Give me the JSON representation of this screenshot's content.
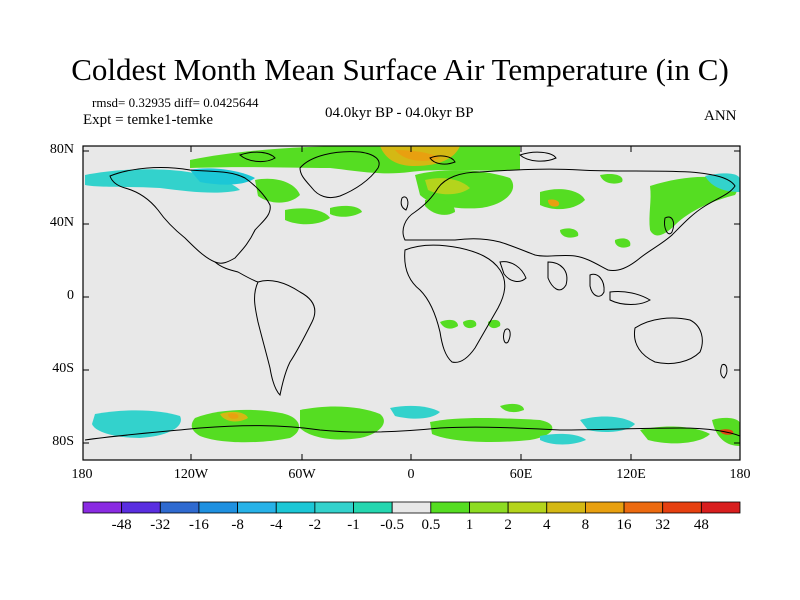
{
  "title": "Coldest Month Mean Surface Air Temperature (in C)",
  "stats_line": "rmsd= 0.32935 diff= 0.0425644",
  "expt_line": "Expt = temke1-temke",
  "period_label": "04.0kyr BP - 04.0kyr BP",
  "season_label": "ANN",
  "lat_labels": [
    "80N",
    "40N",
    "0",
    "40S",
    "80S"
  ],
  "lon_labels": [
    "180",
    "120W",
    "60W",
    "0",
    "60E",
    "120E",
    "180"
  ],
  "colorbar": {
    "labels": [
      "-48",
      "-32",
      "-16",
      "-8",
      "-4",
      "-2",
      "-1",
      "-0.5",
      "0.5",
      "1",
      "2",
      "4",
      "8",
      "16",
      "32",
      "48"
    ],
    "colors": [
      "#8a2be2",
      "#5a2ee0",
      "#2f6ad0",
      "#1e90e0",
      "#27b2e8",
      "#1cc7d6",
      "#33d2cc",
      "#25d7b0",
      "#e8e8e8",
      "#55dd22",
      "#8ddc22",
      "#b4d41c",
      "#d4b814",
      "#e8a010",
      "#ec6a10",
      "#e64010",
      "#d81e1e"
    ]
  },
  "map": {
    "background": "#e8e8e8"
  }
}
